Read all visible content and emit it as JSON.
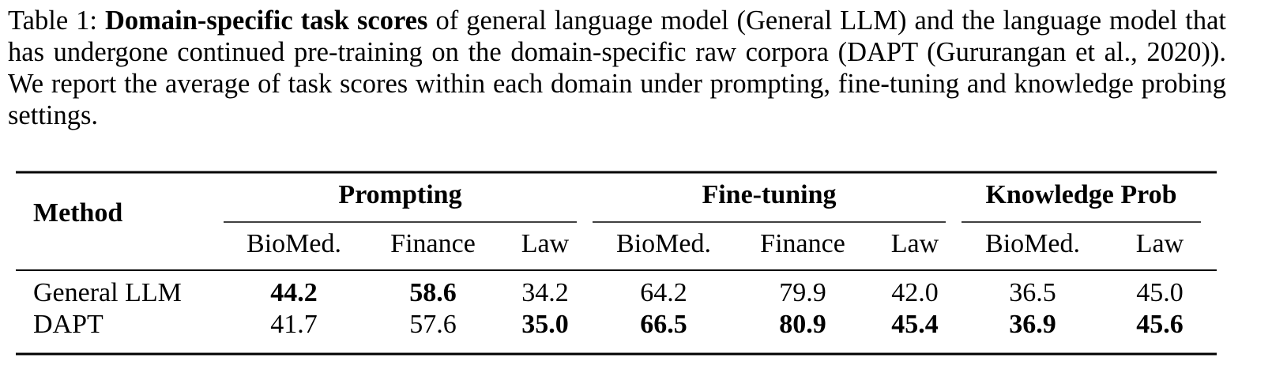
{
  "caption": {
    "label": "Table 1:",
    "bold": "Domain-specific task scores",
    "text": "of general language model (General LLM) and the language model that has undergone continued pre-training on the domain-specific raw corpora (DAPT (Gururangan et al., 2020)). We report the average of task scores within each domain under prompting, fine-tuning and knowledge probing settings."
  },
  "table": {
    "method_header": "Method",
    "groups": [
      {
        "name": "Prompting",
        "columns": [
          "BioMed.",
          "Finance",
          "Law"
        ]
      },
      {
        "name": "Fine-tuning",
        "columns": [
          "BioMed.",
          "Finance",
          "Law"
        ]
      },
      {
        "name": "Knowledge Prob",
        "columns": [
          "BioMed.",
          "Law"
        ]
      }
    ],
    "rows": [
      {
        "method": "General LLM",
        "scores": [
          "44.2",
          "58.6",
          "34.2",
          "64.2",
          "79.9",
          "42.0",
          "36.5",
          "45.0"
        ],
        "bold": [
          true,
          true,
          false,
          false,
          false,
          false,
          false,
          false
        ]
      },
      {
        "method": "DAPT",
        "scores": [
          "41.7",
          "57.6",
          "35.0",
          "66.5",
          "80.9",
          "45.4",
          "36.9",
          "45.6"
        ],
        "bold": [
          false,
          false,
          true,
          true,
          true,
          true,
          true,
          true
        ]
      }
    ]
  }
}
